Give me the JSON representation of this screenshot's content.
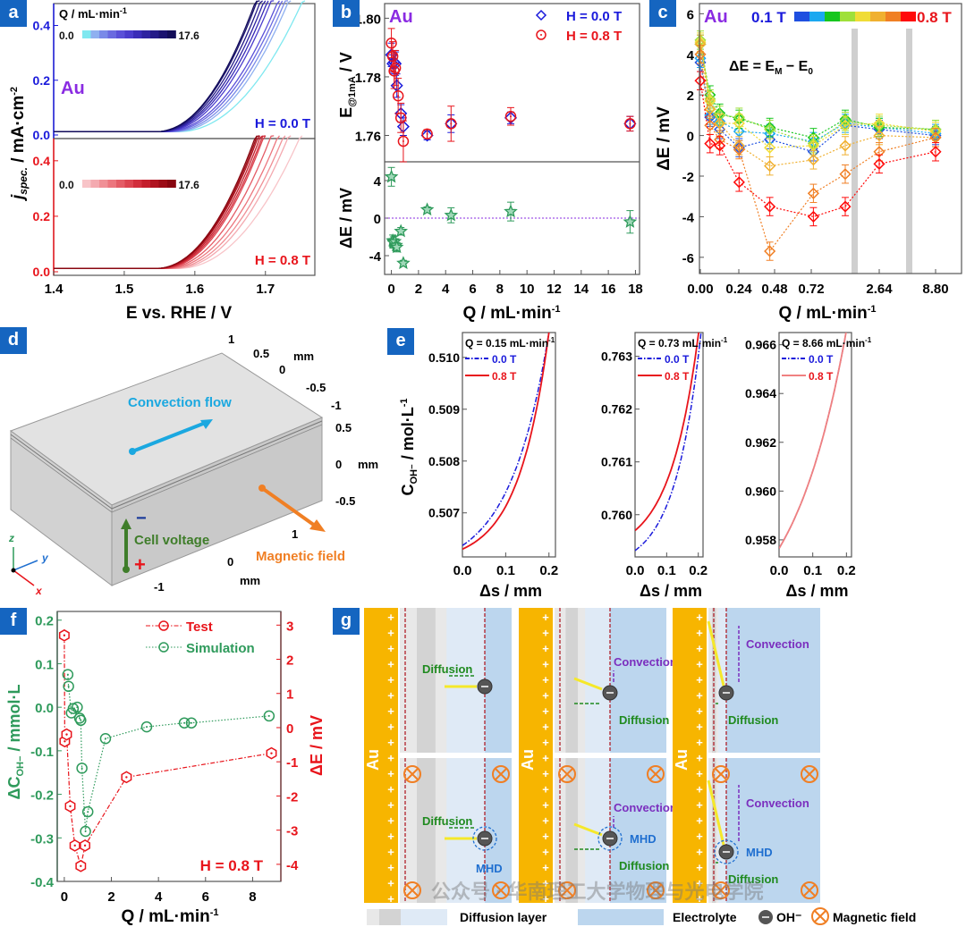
{
  "panel_labels": [
    "a",
    "b",
    "c",
    "d",
    "e",
    "f",
    "g"
  ],
  "colors": {
    "blue": "#1a1adb",
    "red": "#e8141b",
    "purple": "#8a2be2",
    "green": "#2e9a5b",
    "panel_tag": "#1565c0",
    "orange": "#f07f24",
    "cyan": "#1ba8e0",
    "olive": "#3f7d2a",
    "gold": "#f7b500",
    "gray": "#c8c8c8"
  },
  "chart_data": [
    {
      "id": "a",
      "type": "line",
      "title": "",
      "xlabel": "E vs. RHE / V",
      "ylabel": "j_spec. / mA·cm⁻²",
      "ylabel_main": "j",
      "ylabel_sub": "spec.",
      "ylabel_rest": " / mA·cm",
      "ylabel_sup": "-2",
      "xlim": [
        1.4,
        1.77
      ],
      "xticks": [
        "1.4",
        "1.5",
        "1.6",
        "1.7"
      ],
      "xtick_values": [
        1.4,
        1.5,
        1.6,
        1.7
      ],
      "material": "Au",
      "legend_title": "Q / mL·min",
      "legend_title_sup": "-1",
      "colorbar_min": "0.0",
      "colorbar_max": "17.6",
      "subplots": [
        {
          "field": "H = 0.0 T",
          "ylim": [
            0,
            0.48
          ],
          "yticks": [
            "0.0",
            "0.2",
            "0.4"
          ],
          "ytick_values": [
            0,
            0.2,
            0.4
          ],
          "onsets": [
            1.575,
            1.57,
            1.565,
            1.56,
            1.556,
            1.553,
            1.55,
            1.548,
            1.546,
            1.545,
            1.544
          ],
          "ends": [
            1.755,
            1.735,
            1.73,
            1.725,
            1.72,
            1.71,
            1.705,
            1.7,
            1.695,
            1.69,
            1.688
          ],
          "colors": [
            "#7fe8f0",
            "#8fb0f0",
            "#7a8ae8",
            "#6a6ae0",
            "#5a50d8",
            "#4a3ccc",
            "#3a2cb8",
            "#2e22a0",
            "#241a88",
            "#1a1270",
            "#120c58"
          ]
        },
        {
          "field": "H = 0.8 T",
          "ylim": [
            0,
            0.48
          ],
          "yticks": [
            "0.0",
            "0.2",
            "0.4"
          ],
          "ytick_values": [
            0,
            0.2,
            0.4
          ],
          "onsets": [
            1.575,
            1.57,
            1.565,
            1.56,
            1.556,
            1.553,
            1.55,
            1.548,
            1.546,
            1.545,
            1.544
          ],
          "ends": [
            1.752,
            1.735,
            1.728,
            1.72,
            1.71,
            1.7,
            1.698,
            1.695,
            1.692,
            1.69,
            1.688
          ],
          "colors": [
            "#f8c4c8",
            "#f4aab0",
            "#f09096",
            "#ec767e",
            "#e45c66",
            "#dc4450",
            "#d22e3c",
            "#c41e2c",
            "#b01420",
            "#9c0c16",
            "#880610"
          ]
        }
      ]
    },
    {
      "id": "b",
      "type": "scatter",
      "xlabel": "Q / mL·min",
      "xlabel_sup": "-1",
      "xlim": [
        -0.5,
        18.3
      ],
      "xticks": [
        "0",
        "2",
        "4",
        "6",
        "8",
        "10",
        "12",
        "14",
        "16",
        "18"
      ],
      "xtick_values": [
        0,
        2,
        4,
        6,
        8,
        10,
        12,
        14,
        16,
        18
      ],
      "material": "Au",
      "top": {
        "ylabel": "E@1mA / V",
        "ylim": [
          1.751,
          1.805
        ],
        "yticks": [
          "1.76",
          "1.78",
          "1.80"
        ],
        "ytick_values": [
          1.76,
          1.78,
          1.8
        ],
        "series": [
          {
            "name": "H = 0.0 T",
            "marker": "diamond",
            "color": "#1a1adb",
            "x": [
              0,
              0.1,
              0.2,
              0.3,
              0.4,
              0.7,
              0.88,
              2.64,
              4.4,
              8.8,
              17.6
            ],
            "y": [
              1.7875,
              1.7845,
              1.785,
              1.7845,
              1.777,
              1.7675,
              1.763,
              1.76,
              1.764,
              1.766,
              1.764
            ],
            "err": [
              0.004,
              0.003,
              0.004,
              0.004,
              0.004,
              0.003,
              0.003,
              0.0015,
              0.003,
              0.002,
              0.0025
            ]
          },
          {
            "name": "H = 0.8 T",
            "marker": "circle",
            "color": "#e8141b",
            "x": [
              0,
              0.1,
              0.2,
              0.3,
              0.5,
              0.7,
              0.88,
              2.64,
              4.4,
              8.8,
              17.6
            ],
            "y": [
              1.7915,
              1.787,
              1.782,
              1.783,
              1.7735,
              1.766,
              1.758,
              1.7605,
              1.764,
              1.7665,
              1.764
            ],
            "err": [
              0.005,
              0.005,
              0.006,
              0.006,
              0.006,
              0.005,
              0.007,
              0.0015,
              0.006,
              0.003,
              0.0025
            ]
          }
        ]
      },
      "bottom": {
        "ylabel": "ΔE / mV",
        "ylim": [
          -6,
          6
        ],
        "yticks": [
          "-4",
          "0",
          "4"
        ],
        "ytick_values": [
          -4,
          0,
          4
        ],
        "series": [
          {
            "name": "ΔE",
            "marker": "star",
            "color": "#2e9a5b",
            "x": [
              0,
              0.1,
              0.15,
              0.25,
              0.35,
              0.4,
              0.7,
              0.88,
              2.64,
              4.4,
              8.8,
              17.6
            ],
            "y": [
              4.4,
              -2.4,
              -2.6,
              -2.5,
              -2.9,
              -3.1,
              -1.4,
              -4.8,
              0.9,
              0.3,
              0.7,
              -0.4
            ],
            "err": [
              1.0,
              0.6,
              0.6,
              0.6,
              0.6,
              0.5,
              0.4,
              0.3,
              0.3,
              0.8,
              1.0,
              1.2
            ]
          }
        ]
      }
    },
    {
      "id": "c",
      "type": "line",
      "xlabel": "Q / mL·min",
      "xlabel_sup": "-1",
      "ylabel": "ΔE / mV",
      "ylim": [
        -6.8,
        6.5
      ],
      "yticks": [
        "-6",
        "-4",
        "-2",
        "0",
        "2",
        "4",
        "6"
      ],
      "ytick_values": [
        -6,
        -4,
        -2,
        0,
        2,
        4,
        6
      ],
      "xticks": [
        "0.00",
        "0.24",
        "0.48",
        "0.72",
        "2.64",
        "8.80"
      ],
      "x_positions_index": [
        0,
        0.06,
        0.12,
        0.24,
        0.43,
        0.7,
        0.88,
        2.64,
        8.8
      ],
      "material": "Au",
      "equation": "ΔE = E_M − E_0",
      "legend_low": "0.1 T",
      "legend_high": "0.8 T",
      "legend_colors": [
        "#1f4fe0",
        "#1ba8f0",
        "#16c61e",
        "#9fe03a",
        "#f0dc36",
        "#f0b030",
        "#f07f24",
        "#ff0a0a"
      ],
      "series": [
        {
          "name": "0.1 T",
          "color": "#1f4fe0",
          "y": [
            3.6,
            0.9,
            0.3,
            -0.6,
            -0.2,
            -0.8,
            0.5,
            0.3,
            0.0
          ]
        },
        {
          "name": "0.2 T",
          "color": "#1ba8f0",
          "y": [
            3.8,
            1.0,
            0.7,
            0.2,
            0.1,
            -0.3,
            0.6,
            0.4,
            0.1
          ]
        },
        {
          "name": "0.3 T",
          "color": "#16c61e",
          "y": [
            4.5,
            2.0,
            1.1,
            0.8,
            0.4,
            -0.1,
            0.8,
            0.4,
            0.3
          ]
        },
        {
          "name": "0.4 T",
          "color": "#9fe03a",
          "y": [
            4.7,
            1.8,
            1.0,
            0.9,
            0.3,
            -0.4,
            0.7,
            0.5,
            0.3
          ]
        },
        {
          "name": "0.5 T",
          "color": "#f0dc36",
          "y": [
            4.6,
            1.7,
            0.6,
            0.6,
            -0.6,
            -0.5,
            0.5,
            0.6,
            0.2
          ]
        },
        {
          "name": "0.6 T",
          "color": "#f0b030",
          "y": [
            4.5,
            1.3,
            0.6,
            -0.5,
            -1.5,
            -1.2,
            -0.5,
            0.0,
            -0.1
          ]
        },
        {
          "name": "0.7 T",
          "color": "#f07f24",
          "y": [
            4.0,
            0.5,
            -0.2,
            -0.7,
            -5.7,
            -2.85,
            -1.9,
            -0.8,
            -0.1
          ]
        },
        {
          "name": "0.8 T",
          "color": "#ff0a0a",
          "y": [
            2.7,
            -0.4,
            -0.5,
            -2.3,
            -3.5,
            -4.0,
            -3.5,
            -1.4,
            -0.8
          ]
        }
      ]
    },
    {
      "id": "e",
      "type": "line",
      "ylabel": "C_OH⁻ / mol·L⁻¹",
      "xlabel": "Δs / mm",
      "xticks": [
        "0.0",
        "0.1",
        "0.2"
      ],
      "xtick_values": [
        0,
        0.1,
        0.2
      ],
      "xlim": [
        0,
        0.215
      ],
      "subplots": [
        {
          "title": "Q = 0.15 mL·min",
          "title_sup": "-1",
          "ylim": [
            0.50615,
            0.51048
          ],
          "yticks": [
            "0.507",
            "0.508",
            "0.509",
            "0.510"
          ],
          "ytick_values": [
            0.507,
            0.508,
            0.509,
            0.51
          ],
          "series": [
            {
              "name": "0.0 T",
              "style": "dashdot",
              "color": "#1a1adb",
              "y0": 0.50637,
              "y1": 0.51048,
              "k": 2.2
            },
            {
              "name": "0.8 T",
              "style": "solid",
              "color": "#e8141b",
              "y0": 0.5063,
              "y1": 0.51048,
              "k": 2.8
            }
          ]
        },
        {
          "title": "Q = 0.73 mL·min",
          "title_sup": "-1",
          "ylim": [
            0.7592,
            0.76345
          ],
          "yticks": [
            "0.760",
            "0.761",
            "0.762",
            "0.763"
          ],
          "ytick_values": [
            0.76,
            0.761,
            0.762,
            0.763
          ],
          "series": [
            {
              "name": "0.0 T",
              "style": "dashdot",
              "color": "#1a1adb",
              "y0": 0.75932,
              "y1": 0.763,
              "k": 2.4
            },
            {
              "name": "0.8 T",
              "style": "solid",
              "color": "#e8141b",
              "y0": 0.7597,
              "y1": 0.7634,
              "k": 2.2
            }
          ]
        },
        {
          "title": "Q = 8.66 mL·min",
          "title_sup": "-1",
          "ylim": [
            0.9573,
            0.9665
          ],
          "yticks": [
            "0.958",
            "0.960",
            "0.962",
            "0.964",
            "0.966"
          ],
          "ytick_values": [
            0.958,
            0.96,
            0.962,
            0.964,
            0.966
          ],
          "series": [
            {
              "name": "0.0 T",
              "style": "dashdot",
              "color": "#1a1adb",
              "y0": 0.95765,
              "y1": 0.9666,
              "k": 1.2
            },
            {
              "name": "0.8 T",
              "style": "solid",
              "color": "#f08080",
              "y0": 0.95765,
              "y1": 0.9666,
              "k": 1.2
            }
          ]
        }
      ]
    },
    {
      "id": "f",
      "type": "line",
      "xlabel": "Q / mL·min",
      "xlabel_sup": "-1",
      "xlim": [
        -0.3,
        9.2
      ],
      "xticks": [
        "0",
        "2",
        "4",
        "6",
        "8"
      ],
      "xtick_values": [
        0,
        2,
        4,
        6,
        8
      ],
      "ylabel_left": "ΔC_OH- / mmol·L",
      "ylabel_right": "ΔE / mV",
      "ylim_left": [
        -0.4,
        0.22
      ],
      "yticks_left": [
        "-0.4",
        "-0.3",
        "-0.2",
        "-0.1",
        "0.0",
        "0.1",
        "0.2"
      ],
      "ytick_values_left": [
        -0.4,
        -0.3,
        -0.2,
        -0.1,
        0.0,
        0.1,
        0.2
      ],
      "ylim_right": [
        -4.5,
        3.4
      ],
      "yticks_right": [
        "-4",
        "-3",
        "-2",
        "-1",
        "0",
        "1",
        "2",
        "3"
      ],
      "ytick_values_right": [
        -4,
        -3,
        -2,
        -1,
        0,
        1,
        2,
        3
      ],
      "annotation": "H = 0.8 T",
      "series": [
        {
          "name": "Test",
          "axis": "right",
          "color": "#e8141b",
          "style": "dashdot",
          "x": [
            0,
            0.02,
            0.1,
            0.25,
            0.45,
            0.7,
            0.88,
            2.64,
            8.8
          ],
          "y": [
            2.7,
            -0.4,
            -0.2,
            -2.3,
            -3.45,
            -4.05,
            -3.45,
            -1.45,
            -0.75
          ]
        },
        {
          "name": "Simulation",
          "axis": "left",
          "color": "#2e9a5b",
          "style": "dotted",
          "x": [
            0.15,
            0.18,
            0.3,
            0.38,
            0.55,
            0.65,
            0.7,
            0.75,
            0.9,
            1.0,
            1.75,
            3.5,
            5.1,
            5.4,
            8.7
          ],
          "y": [
            0.075,
            0.048,
            -0.013,
            -0.003,
            0.0,
            -0.025,
            -0.03,
            -0.14,
            -0.285,
            -0.24,
            -0.072,
            -0.045,
            -0.036,
            -0.036,
            -0.02
          ]
        }
      ]
    }
  ],
  "panel_d": {
    "labels": {
      "convection": "Convection flow",
      "voltage": "Cell voltage",
      "magnetic": "Magnetic field",
      "minus": "−",
      "plus": "+"
    },
    "axis_top": [
      "1",
      "0.5",
      "0",
      "-0.5",
      "-1"
    ],
    "axis_side": [
      "0.5",
      "0",
      "-0.5"
    ],
    "axis_bottom": [
      "1",
      "0",
      "-1"
    ],
    "unit": "mm",
    "triad": {
      "z": "z",
      "y": "y",
      "x": "x"
    }
  },
  "panel_g": {
    "electrode": "Au",
    "columns": [
      {
        "top": {
          "diffusion": "Diffusion"
        },
        "bottom": {
          "diffusion": "Diffusion",
          "mhd": "MHD"
        }
      },
      {
        "top": {
          "diffusion": "Diffusion",
          "convection": "Convection"
        },
        "bottom": {
          "diffusion": "Diffusion",
          "convection": "Convection",
          "mhd": "MHD"
        }
      },
      {
        "top": {
          "diffusion": "Diffusion",
          "convection": "Convection"
        },
        "bottom": {
          "diffusion": "Diffusion",
          "convection": "Convection",
          "mhd": "MHD"
        }
      }
    ],
    "legend": {
      "diffusion_layer": "Diffusion layer",
      "electrolyte": "Electrolyte",
      "oh": "OH⁻",
      "magnetic": "Magnetic field"
    },
    "watermark": "公众号 · 华南理工大学物理与光电学院"
  }
}
